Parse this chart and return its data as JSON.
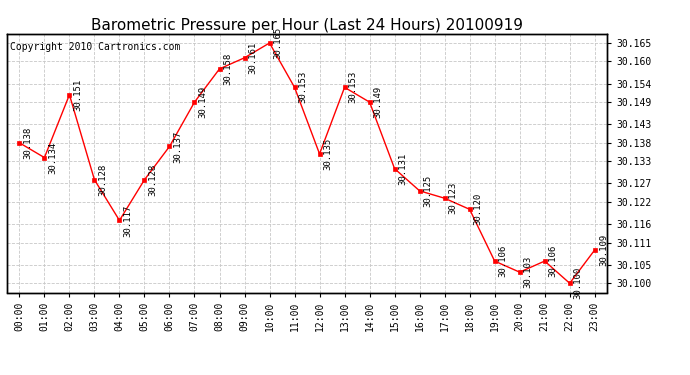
{
  "title": "Barometric Pressure per Hour (Last 24 Hours) 20100919",
  "copyright": "Copyright 2010 Cartronics.com",
  "hours": [
    "00:00",
    "01:00",
    "02:00",
    "03:00",
    "04:00",
    "05:00",
    "06:00",
    "07:00",
    "08:00",
    "09:00",
    "10:00",
    "11:00",
    "12:00",
    "13:00",
    "14:00",
    "15:00",
    "16:00",
    "17:00",
    "18:00",
    "19:00",
    "20:00",
    "21:00",
    "22:00",
    "23:00"
  ],
  "values": [
    30.138,
    30.134,
    30.151,
    30.128,
    30.117,
    30.128,
    30.137,
    30.149,
    30.158,
    30.161,
    30.165,
    30.153,
    30.135,
    30.153,
    30.149,
    30.131,
    30.125,
    30.123,
    30.12,
    30.106,
    30.103,
    30.106,
    30.1,
    30.109
  ],
  "ylim_min": 30.0975,
  "ylim_max": 30.1675,
  "yticks": [
    30.1,
    30.105,
    30.111,
    30.116,
    30.122,
    30.127,
    30.133,
    30.138,
    30.143,
    30.149,
    30.154,
    30.16,
    30.165
  ],
  "line_color": "red",
  "marker_color": "red",
  "bg_color": "white",
  "grid_color": "#c8c8c8",
  "title_fontsize": 11,
  "label_fontsize": 7,
  "copyright_fontsize": 7,
  "annotation_fontsize": 6.5
}
